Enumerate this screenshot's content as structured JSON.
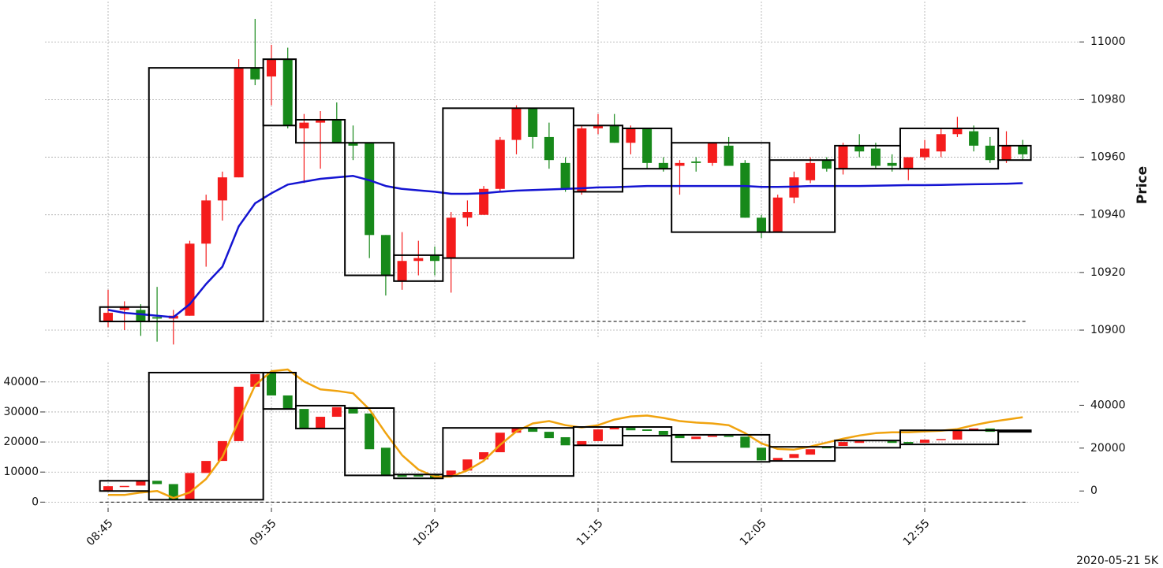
{
  "chart_data": [
    {
      "type": "candlestick",
      "ylabel": "Price",
      "yaxis_side": "right",
      "grid": true,
      "ylim": [
        10897,
        11014
      ],
      "yticks": [
        10900,
        10920,
        10940,
        10960,
        10980,
        11000
      ],
      "up_color": "#f41c1c",
      "down_color": "#17891a",
      "box_color": "#000000",
      "baseline": 10903,
      "open": [
        10903,
        10907,
        10907,
        10904.5,
        10904,
        10905,
        10930,
        10945,
        10953,
        10991,
        10988,
        10994,
        10970,
        10972,
        10973,
        10965,
        10965,
        10933,
        10917,
        10924,
        10926,
        10925,
        10939,
        10940,
        10949,
        10966,
        10977,
        10967,
        10958,
        10948,
        10970,
        10971,
        10965,
        10970,
        10958,
        10957,
        10958.5,
        10958,
        10964,
        10958,
        10939,
        10934,
        10946,
        10952,
        10959,
        10956,
        10964,
        10963,
        10958,
        10956,
        10960,
        10962,
        10968,
        10969,
        10964,
        10959,
        10964
      ],
      "high": [
        10914,
        10910,
        10909,
        10915,
        10907,
        10931,
        10947,
        10955,
        10994,
        11008,
        10999,
        10998,
        10975,
        10976,
        10979,
        10971,
        10965,
        10933,
        10934,
        10931,
        10929,
        10941,
        10945,
        10950,
        10967,
        10978,
        10977,
        10972,
        10960,
        10971,
        10975,
        10975,
        10971,
        10970,
        10960,
        10959,
        10960,
        10965,
        10967,
        10959,
        10940,
        10947,
        10955,
        10960,
        10960,
        10965,
        10968,
        10965,
        10961,
        10960,
        10966,
        10970,
        10974,
        10971,
        10967,
        10969,
        10966
      ],
      "low": [
        10901,
        10900,
        10898,
        10896,
        10895,
        10905,
        10922,
        10938,
        10953,
        10985,
        10978,
        10970,
        10951,
        10956,
        10965,
        10959,
        10925,
        10912,
        10914,
        10919,
        10919,
        10913,
        10936,
        10940,
        10948,
        10961,
        10963,
        10956,
        10948,
        10947,
        10968,
        10965,
        10961,
        10956,
        10955,
        10947,
        10955,
        10957,
        10957,
        10939,
        10932,
        10934,
        10944,
        10951,
        10955,
        10954,
        10960,
        10956,
        10955,
        10952,
        10959,
        10960,
        10967,
        10962,
        10958,
        10958,
        10959
      ],
      "close": [
        10906,
        10908,
        10903,
        10904,
        10905,
        10930,
        10945,
        10953,
        10991,
        10987,
        10994,
        10971,
        10972,
        10973,
        10965,
        10964,
        10933,
        10919,
        10924,
        10925,
        10924,
        10939,
        10941,
        10949,
        10966,
        10977,
        10967,
        10959,
        10949,
        10970,
        10971,
        10965,
        10970,
        10958,
        10956,
        10958,
        10958,
        10965,
        10957,
        10939,
        10934,
        10946,
        10953,
        10958,
        10956,
        10964,
        10962,
        10957,
        10957,
        10960,
        10963,
        10968,
        10970,
        10964,
        10959,
        10964,
        10961
      ],
      "line": {
        "color": "#1414d2",
        "values": [
          10907,
          10906,
          10905.5,
          10905,
          10904.5,
          10909,
          10916,
          10922,
          10936,
          10944,
          10947.5,
          10950.5,
          10951.5,
          10952.5,
          10953,
          10953.5,
          10952,
          10950,
          10949,
          10948.5,
          10948,
          10947.3,
          10947.3,
          10947.5,
          10948,
          10948.4,
          10948.6,
          10948.8,
          10949,
          10949.2,
          10949.5,
          10949.6,
          10949.8,
          10950,
          10950,
          10950,
          10950,
          10950,
          10950,
          10950,
          10949.7,
          10949.7,
          10949.8,
          10950,
          10950,
          10950,
          10950,
          10950.1,
          10950.2,
          10950.3,
          10950.3,
          10950.4,
          10950.5,
          10950.6,
          10950.7,
          10950.8,
          10951
        ]
      },
      "boxes": [
        {
          "start": 0,
          "end": 2,
          "low": 10903,
          "high": 10908
        },
        {
          "start": 3,
          "end": 9,
          "low": 10903,
          "high": 10991
        },
        {
          "start": 10,
          "end": 11,
          "low": 10971,
          "high": 10994
        },
        {
          "start": 12,
          "end": 14,
          "low": 10965,
          "high": 10973
        },
        {
          "start": 15,
          "end": 17,
          "low": 10919,
          "high": 10965
        },
        {
          "start": 18,
          "end": 20,
          "low": 10917,
          "high": 10926
        },
        {
          "start": 21,
          "end": 28,
          "low": 10925,
          "high": 10977
        },
        {
          "start": 29,
          "end": 31,
          "low": 10948,
          "high": 10971
        },
        {
          "start": 32,
          "end": 34,
          "low": 10956,
          "high": 10970
        },
        {
          "start": 35,
          "end": 40,
          "low": 10934,
          "high": 10965
        },
        {
          "start": 41,
          "end": 44,
          "low": 10934,
          "high": 10959
        },
        {
          "start": 45,
          "end": 48,
          "low": 10956,
          "high": 10964
        },
        {
          "start": 49,
          "end": 54,
          "low": 10956,
          "high": 10970
        },
        {
          "start": 55,
          "end": 56,
          "low": 10959,
          "high": 10964
        }
      ]
    },
    {
      "type": "candlestick",
      "yaxis_side": "left",
      "grid": true,
      "categories": [
        "08:45",
        null,
        null,
        null,
        null,
        null,
        null,
        null,
        null,
        null,
        "09:35",
        null,
        null,
        null,
        null,
        null,
        null,
        null,
        null,
        null,
        "10:25",
        null,
        null,
        null,
        null,
        null,
        null,
        null,
        null,
        null,
        "11:15",
        null,
        null,
        null,
        null,
        null,
        null,
        null,
        null,
        null,
        "12:05",
        null,
        null,
        null,
        null,
        null,
        null,
        null,
        null,
        null,
        "12:55",
        null,
        null,
        null,
        null,
        null,
        null
      ],
      "ylim": [
        -2000,
        46500
      ],
      "yticks": [
        0,
        10000,
        20000,
        30000,
        40000
      ],
      "y2lim": [
        -8000,
        60000
      ],
      "y2ticks": [
        0,
        20000,
        40000
      ],
      "up_color": "#f41c1c",
      "down_color": "#17891a",
      "box_color": "#000000",
      "baseline": 0,
      "open": [
        3900,
        5200,
        5500,
        7100,
        6000,
        1000,
        9700,
        13700,
        20300,
        38400,
        43100,
        35500,
        31000,
        24700,
        28400,
        31600,
        29500,
        18100,
        9200,
        9000,
        9200,
        8900,
        10500,
        14200,
        16600,
        23100,
        24700,
        23400,
        21600,
        18900,
        20300,
        24200,
        24700,
        24200,
        23700,
        22400,
        21000,
        21800,
        22100,
        21800,
        18100,
        13900,
        14700,
        15800,
        18400,
        18700,
        19700,
        20500,
        20500,
        20000,
        19700,
        20800,
        20800,
        23700,
        24500,
        23900,
        23900
      ],
      "close": [
        5300,
        5400,
        7100,
        6000,
        1000,
        9700,
        13700,
        20300,
        38400,
        42600,
        35500,
        31000,
        24700,
        28400,
        31600,
        29500,
        17600,
        8700,
        8400,
        8500,
        7900,
        10500,
        14200,
        16600,
        23100,
        24700,
        23400,
        21300,
        18900,
        20300,
        24200,
        25000,
        23900,
        23700,
        22400,
        21300,
        21800,
        22100,
        21800,
        18100,
        13900,
        14700,
        16000,
        17600,
        17900,
        20000,
        20500,
        20700,
        19700,
        19500,
        20800,
        21000,
        23700,
        24500,
        23400,
        23400,
        23400
      ],
      "line": {
        "color": "#f0a30f",
        "axis": "y2",
        "values": [
          -1850,
          -1850,
          -740,
          0,
          -3300,
          -700,
          5600,
          15900,
          32600,
          49300,
          55900,
          56700,
          51100,
          47400,
          46700,
          45600,
          38100,
          27000,
          16700,
          10000,
          6700,
          6700,
          9600,
          14100,
          21500,
          27800,
          31500,
          32600,
          30700,
          29600,
          30700,
          33300,
          34800,
          35200,
          34100,
          32600,
          31900,
          31500,
          30700,
          27000,
          22200,
          19600,
          19300,
          20700,
          22600,
          24400,
          25900,
          27000,
          27400,
          27400,
          27800,
          28100,
          28900,
          30700,
          32200,
          33300,
          34400
        ]
      },
      "boxes": [
        {
          "start": 0,
          "end": 2,
          "low": 3700,
          "high": 7100
        },
        {
          "start": 3,
          "end": 9,
          "low": 800,
          "high": 43100
        },
        {
          "start": 10,
          "end": 11,
          "low": 31000,
          "high": 43100
        },
        {
          "start": 12,
          "end": 14,
          "low": 24500,
          "high": 32100
        },
        {
          "start": 15,
          "end": 17,
          "low": 8900,
          "high": 31300
        },
        {
          "start": 18,
          "end": 20,
          "low": 7900,
          "high": 9200
        },
        {
          "start": 21,
          "end": 28,
          "low": 8700,
          "high": 24700
        },
        {
          "start": 29,
          "end": 31,
          "low": 18900,
          "high": 25000
        },
        {
          "start": 32,
          "end": 34,
          "low": 22100,
          "high": 25000
        },
        {
          "start": 35,
          "end": 40,
          "low": 13400,
          "high": 22400
        },
        {
          "start": 41,
          "end": 44,
          "low": 13700,
          "high": 18400
        },
        {
          "start": 45,
          "end": 48,
          "low": 18100,
          "high": 20500
        },
        {
          "start": 49,
          "end": 54,
          "low": 19200,
          "high": 23900
        },
        {
          "start": 55,
          "end": 56,
          "low": 23400,
          "high": 23900
        }
      ],
      "annotation": "2020-05-21 5K"
    }
  ]
}
